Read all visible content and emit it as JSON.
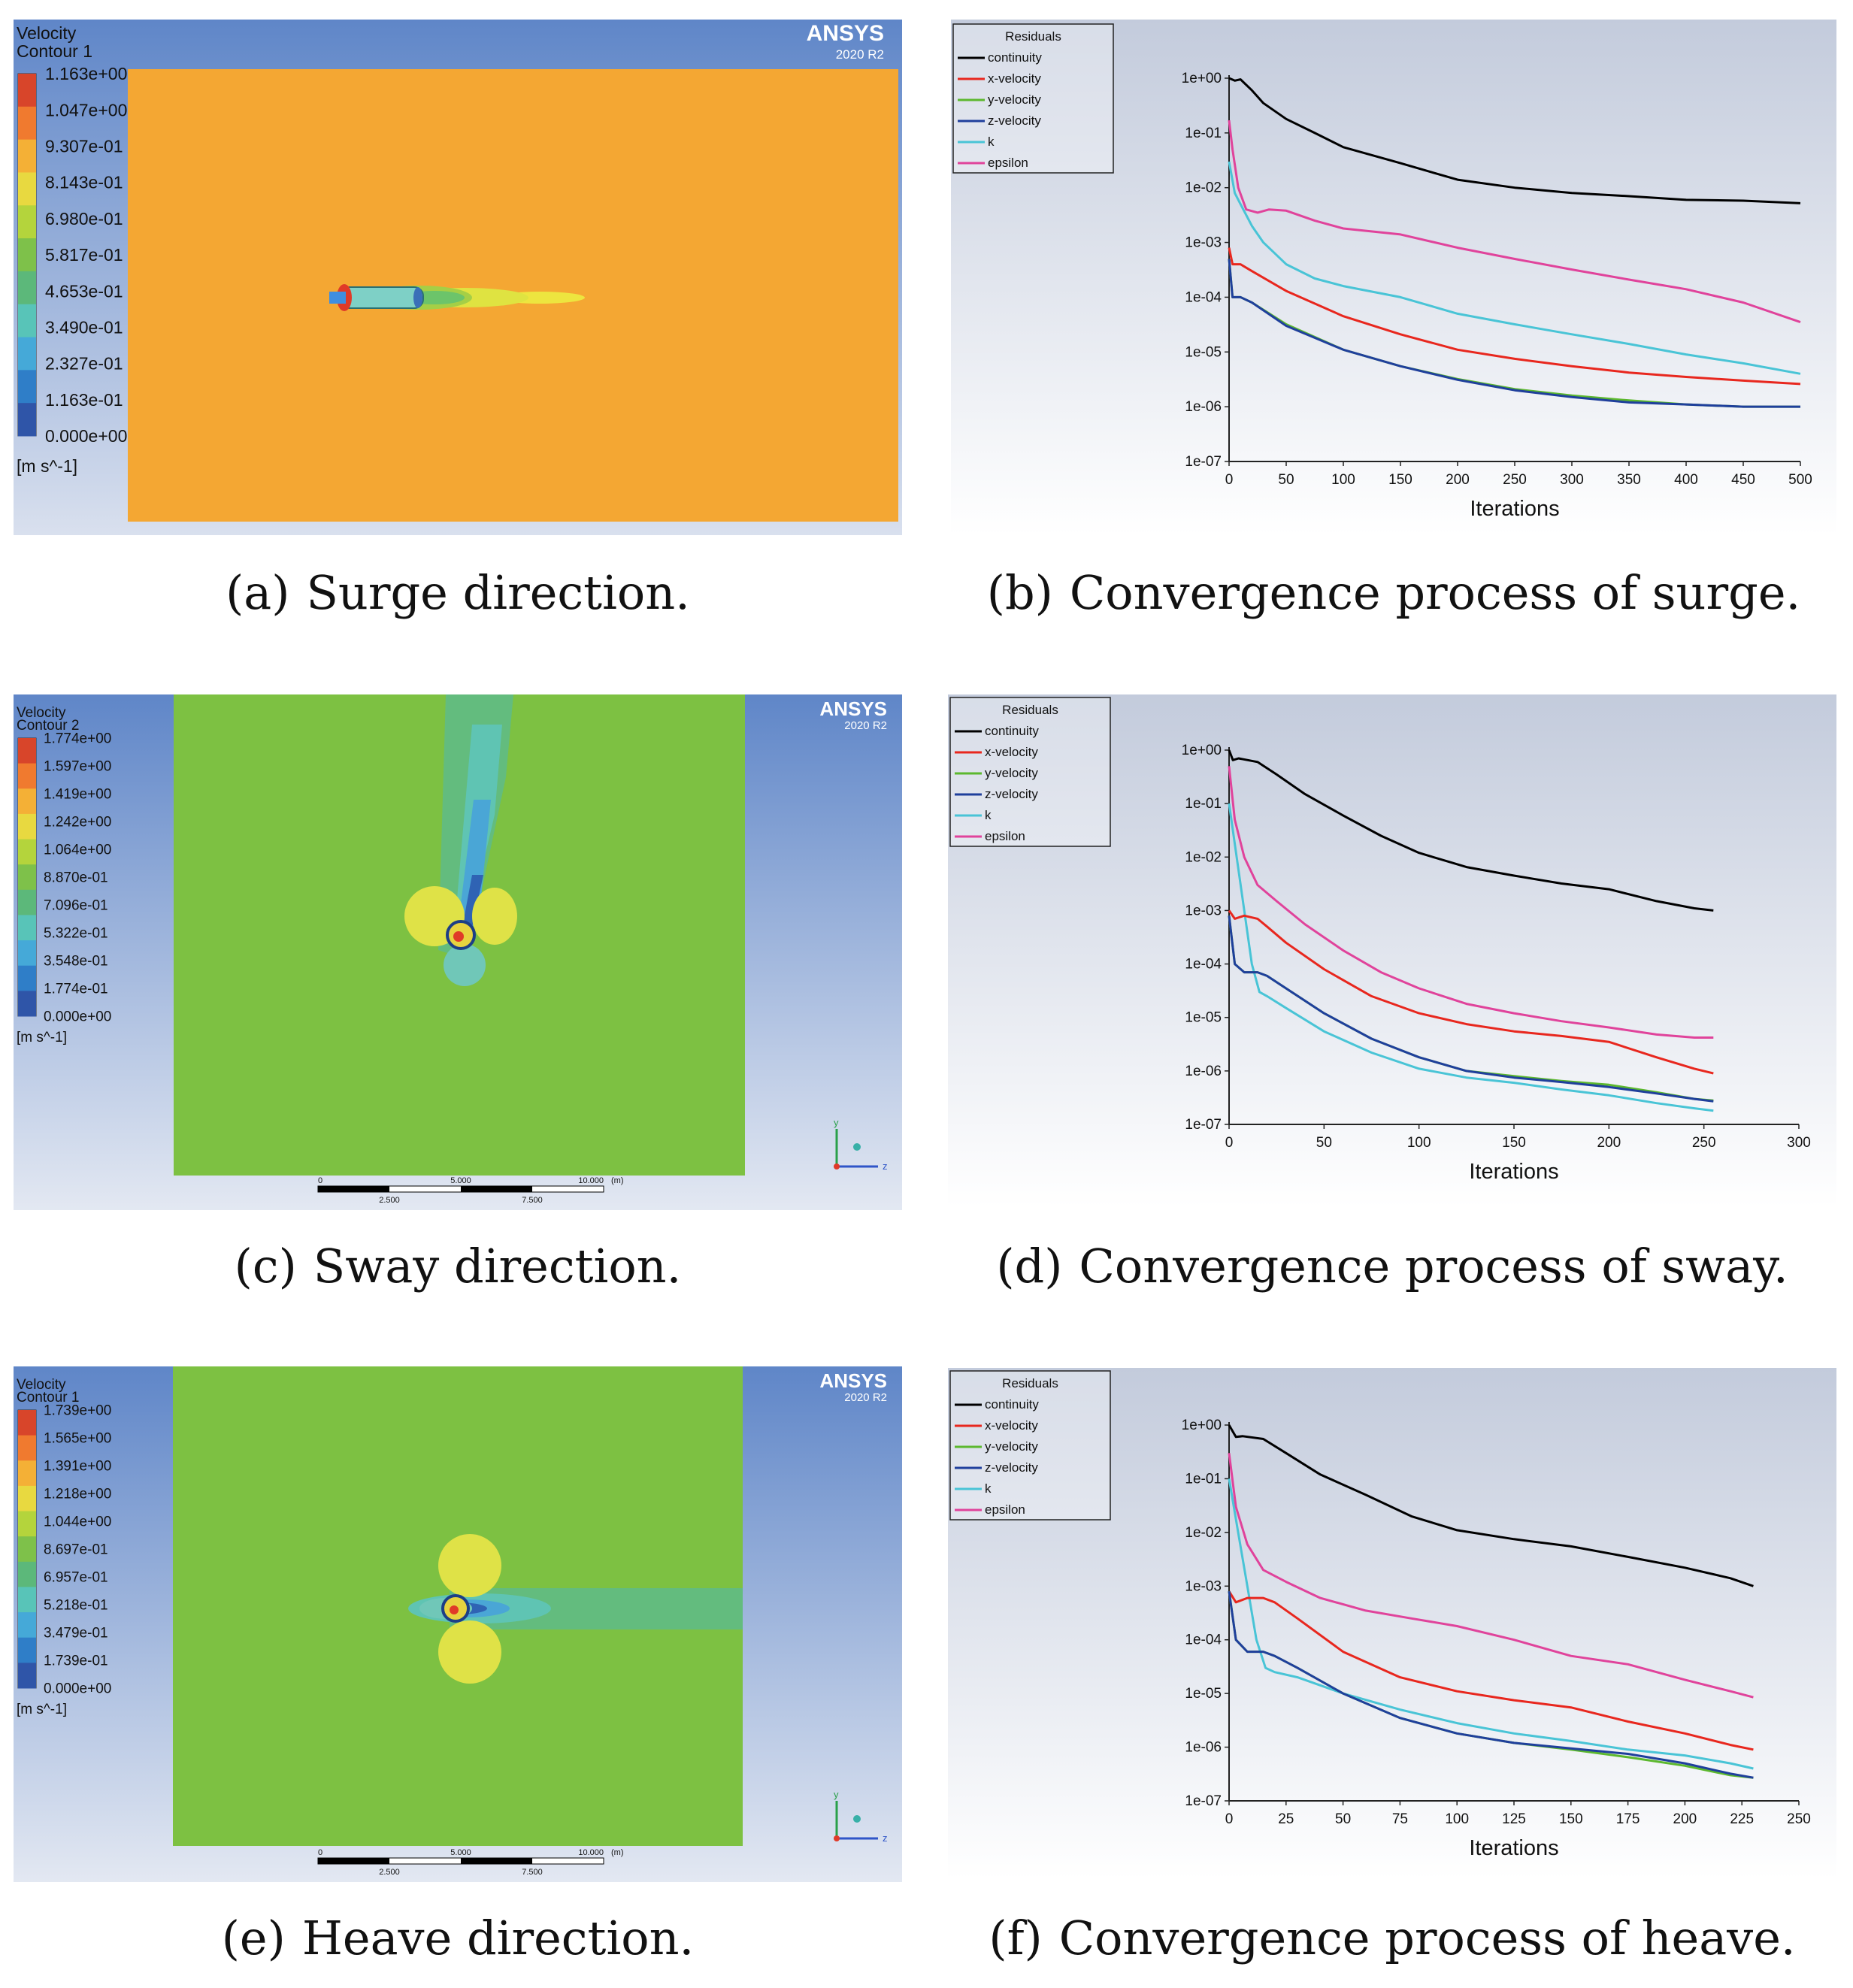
{
  "captions": {
    "a": {
      "label": "(a)",
      "text": "Surge direction."
    },
    "b": {
      "label": "(b)",
      "text": "Convergence process of surge."
    },
    "c": {
      "label": "(c)",
      "text": "Sway direction."
    },
    "d": {
      "label": "(d)",
      "text": "Convergence process of sway."
    },
    "e": {
      "label": "(e)",
      "text": "Heave direction."
    },
    "f": {
      "label": "(f)",
      "text": "Convergence process of heave."
    }
  },
  "contours": [
    {
      "id": "a",
      "title1": "Velocity",
      "title2": "Contour 1",
      "unit": "[m s^-1]",
      "brand": "ANSYS",
      "version": "2020 R2",
      "levels": [
        "1.163e+00",
        "1.047e+00",
        "9.307e-01",
        "8.143e-01",
        "6.980e-01",
        "5.817e-01",
        "4.653e-01",
        "3.490e-01",
        "2.327e-01",
        "1.163e-01",
        "0.000e+00"
      ]
    },
    {
      "id": "c",
      "title1": "Velocity",
      "title2": "Contour 2",
      "unit": "[m s^-1]",
      "brand": "ANSYS",
      "version": "2020 R2",
      "levels": [
        "1.774e+00",
        "1.597e+00",
        "1.419e+00",
        "1.242e+00",
        "1.064e+00",
        "8.870e-01",
        "7.096e-01",
        "5.322e-01",
        "3.548e-01",
        "1.774e-01",
        "0.000e+00"
      ],
      "scale": {
        "ticks_top": [
          "0",
          "5.000",
          "10.000"
        ],
        "unit": "(m)",
        "ticks_bottom": [
          "2.500",
          "7.500"
        ]
      },
      "axes": {
        "y": "y",
        "z": "z"
      }
    },
    {
      "id": "e",
      "title1": "Velocity",
      "title2": "Contour 1",
      "unit": "[m s^-1]",
      "brand": "ANSYS",
      "version": "2020 R2",
      "levels": [
        "1.739e+00",
        "1.565e+00",
        "1.391e+00",
        "1.218e+00",
        "1.044e+00",
        "8.697e-01",
        "6.957e-01",
        "5.218e-01",
        "3.479e-01",
        "1.739e-01",
        "0.000e+00"
      ],
      "scale": {
        "ticks_top": [
          "0",
          "5.000",
          "10.000"
        ],
        "unit": "(m)",
        "ticks_bottom": [
          "2.500",
          "7.500"
        ]
      },
      "axes": {
        "y": "y",
        "z": "z"
      }
    }
  ],
  "colormap": [
    "#d8452a",
    "#f07a2f",
    "#f4b036",
    "#e8d940",
    "#b4d43c",
    "#7ec14a",
    "#5cb87a",
    "#58c4b8",
    "#45a9d8",
    "#2f7ec8",
    "#2f55a8"
  ],
  "colors": {
    "continuity": "#000000",
    "x-velocity": "#e8271e",
    "y-velocity": "#5cb82e",
    "z-velocity": "#1f3f9c",
    "k": "#49c4d6",
    "epsilon": "#e0439b"
  },
  "chart_data": [
    {
      "id": "b",
      "type": "line",
      "title": "",
      "legend_title": "Residuals",
      "xlabel": "Iterations",
      "ylabel": "",
      "xlim": [
        0,
        500
      ],
      "ylim": [
        1e-07,
        1
      ],
      "xticks": [
        0,
        50,
        100,
        150,
        200,
        250,
        300,
        350,
        400,
        450,
        500
      ],
      "yticks": [
        "1e+00",
        "1e-01",
        "1e-02",
        "1e-03",
        "1e-04",
        "1e-05",
        "1e-06",
        "1e-07"
      ],
      "series": [
        {
          "name": "continuity",
          "x": [
            0,
            5,
            10,
            20,
            30,
            50,
            75,
            100,
            150,
            200,
            250,
            300,
            350,
            400,
            450,
            500
          ],
          "y": [
            1,
            0.9,
            0.95,
            0.6,
            0.35,
            0.18,
            0.1,
            0.055,
            0.028,
            0.014,
            0.01,
            0.008,
            0.007,
            0.006,
            0.0058,
            0.0052
          ]
        },
        {
          "name": "x-velocity",
          "x": [
            0,
            3,
            10,
            20,
            50,
            100,
            150,
            200,
            250,
            300,
            350,
            400,
            450,
            500
          ],
          "y": [
            0.0008,
            0.0004,
            0.0004,
            0.0003,
            0.00013,
            4.5e-05,
            2.1e-05,
            1.1e-05,
            7.5e-06,
            5.5e-06,
            4.2e-06,
            3.5e-06,
            3e-06,
            2.6e-06
          ]
        },
        {
          "name": "y-velocity",
          "x": [
            0,
            3,
            10,
            20,
            50,
            100,
            150,
            200,
            250,
            300,
            350,
            400,
            450,
            500
          ],
          "y": [
            0.0005,
            0.0001,
            0.0001,
            8e-05,
            3.2e-05,
            1.1e-05,
            5.5e-06,
            3.2e-06,
            2.1e-06,
            1.6e-06,
            1.3e-06,
            1.1e-06,
            1e-06,
            1e-06
          ]
        },
        {
          "name": "z-velocity",
          "x": [
            0,
            3,
            10,
            20,
            50,
            100,
            150,
            200,
            250,
            300,
            350,
            400,
            450,
            500
          ],
          "y": [
            0.0005,
            0.0001,
            0.0001,
            8e-05,
            3e-05,
            1.1e-05,
            5.5e-06,
            3.1e-06,
            2e-06,
            1.5e-06,
            1.2e-06,
            1.1e-06,
            1e-06,
            1e-06
          ]
        },
        {
          "name": "k",
          "x": [
            0,
            5,
            10,
            20,
            30,
            50,
            75,
            100,
            150,
            200,
            250,
            300,
            350,
            400,
            450,
            500
          ],
          "y": [
            0.03,
            0.008,
            0.005,
            0.002,
            0.001,
            0.0004,
            0.00022,
            0.00016,
            0.0001,
            5e-05,
            3.2e-05,
            2.1e-05,
            1.4e-05,
            9e-06,
            6.2e-06,
            4e-06
          ]
        },
        {
          "name": "epsilon",
          "x": [
            0,
            3,
            8,
            15,
            25,
            35,
            50,
            75,
            100,
            150,
            200,
            250,
            300,
            350,
            400,
            450,
            500
          ],
          "y": [
            0.17,
            0.05,
            0.01,
            0.004,
            0.0035,
            0.004,
            0.0038,
            0.0025,
            0.0018,
            0.0014,
            0.0008,
            0.0005,
            0.00032,
            0.00021,
            0.00014,
            8e-05,
            3.5e-05
          ]
        }
      ]
    },
    {
      "id": "d",
      "type": "line",
      "title": "",
      "legend_title": "Residuals",
      "xlabel": "Iterations",
      "ylabel": "",
      "xlim": [
        0,
        300
      ],
      "ylim": [
        1e-07,
        1
      ],
      "xticks": [
        0,
        50,
        100,
        150,
        200,
        250,
        300
      ],
      "yticks": [
        "1e+00",
        "1e-01",
        "1e-02",
        "1e-03",
        "1e-04",
        "1e-05",
        "1e-06",
        "1e-07"
      ],
      "series": [
        {
          "name": "continuity",
          "x": [
            0,
            2,
            5,
            15,
            25,
            40,
            60,
            80,
            100,
            125,
            150,
            175,
            200,
            225,
            245,
            255
          ],
          "y": [
            1,
            0.65,
            0.7,
            0.6,
            0.35,
            0.15,
            0.06,
            0.025,
            0.012,
            0.0065,
            0.0045,
            0.0032,
            0.0025,
            0.0015,
            0.0011,
            0.001
          ]
        },
        {
          "name": "x-velocity",
          "x": [
            0,
            3,
            8,
            15,
            20,
            30,
            50,
            75,
            100,
            125,
            150,
            175,
            200,
            225,
            245,
            255
          ],
          "y": [
            0.001,
            0.0007,
            0.0008,
            0.0007,
            0.0005,
            0.00025,
            8e-05,
            2.5e-05,
            1.2e-05,
            7.5e-06,
            5.5e-06,
            4.5e-06,
            3.5e-06,
            1.8e-06,
            1.1e-06,
            9e-07
          ]
        },
        {
          "name": "y-velocity",
          "x": [
            0,
            3,
            8,
            15,
            20,
            30,
            50,
            75,
            100,
            125,
            150,
            175,
            200,
            225,
            245,
            255
          ],
          "y": [
            0.0008,
            0.0001,
            7e-05,
            7e-05,
            6e-05,
            3.5e-05,
            1.2e-05,
            4e-06,
            1.8e-06,
            1e-06,
            8e-07,
            6.5e-07,
            5.5e-07,
            4e-07,
            3e-07,
            2.8e-07
          ]
        },
        {
          "name": "z-velocity",
          "x": [
            0,
            3,
            8,
            15,
            20,
            30,
            50,
            75,
            100,
            125,
            150,
            175,
            200,
            225,
            245,
            255
          ],
          "y": [
            0.0008,
            0.0001,
            7e-05,
            7e-05,
            6e-05,
            3.5e-05,
            1.2e-05,
            4e-06,
            1.8e-06,
            1e-06,
            7.5e-07,
            6.2e-07,
            5e-07,
            3.8e-07,
            3e-07,
            2.7e-07
          ]
        },
        {
          "name": "k",
          "x": [
            0,
            4,
            8,
            12,
            16,
            20,
            30,
            50,
            75,
            100,
            125,
            150,
            175,
            200,
            225,
            245,
            255
          ],
          "y": [
            0.1,
            0.01,
            0.001,
            0.0001,
            3e-05,
            2.5e-05,
            1.5e-05,
            5.5e-06,
            2.2e-06,
            1.1e-06,
            7.5e-07,
            6e-07,
            4.5e-07,
            3.5e-07,
            2.5e-07,
            2e-07,
            1.8e-07
          ]
        },
        {
          "name": "epsilon",
          "x": [
            0,
            3,
            8,
            15,
            25,
            40,
            60,
            80,
            100,
            125,
            150,
            175,
            200,
            225,
            245,
            255
          ],
          "y": [
            0.5,
            0.05,
            0.01,
            0.003,
            0.0015,
            0.00055,
            0.00018,
            7e-05,
            3.5e-05,
            1.8e-05,
            1.2e-05,
            8.5e-06,
            6.5e-06,
            4.8e-06,
            4.2e-06,
            4.2e-06
          ]
        }
      ]
    },
    {
      "id": "f",
      "type": "line",
      "title": "",
      "legend_title": "Residuals",
      "xlabel": "Iterations",
      "ylabel": "",
      "xlim": [
        0,
        250
      ],
      "ylim": [
        1e-07,
        1
      ],
      "xticks": [
        0,
        25,
        50,
        75,
        100,
        125,
        150,
        175,
        200,
        225,
        250
      ],
      "yticks": [
        "1e+00",
        "1e-01",
        "1e-02",
        "1e-03",
        "1e-04",
        "1e-05",
        "1e-06",
        "1e-07"
      ],
      "series": [
        {
          "name": "continuity",
          "x": [
            0,
            3,
            6,
            15,
            25,
            40,
            60,
            80,
            100,
            125,
            150,
            175,
            200,
            220,
            230
          ],
          "y": [
            1,
            0.6,
            0.62,
            0.55,
            0.3,
            0.12,
            0.05,
            0.02,
            0.011,
            0.0075,
            0.0055,
            0.0035,
            0.0022,
            0.0014,
            0.001
          ]
        },
        {
          "name": "x-velocity",
          "x": [
            0,
            3,
            8,
            15,
            20,
            30,
            50,
            75,
            100,
            125,
            150,
            175,
            200,
            220,
            230
          ],
          "y": [
            0.0008,
            0.0005,
            0.0006,
            0.0006,
            0.0005,
            0.00025,
            6e-05,
            2e-05,
            1.1e-05,
            7.5e-06,
            5.5e-06,
            3e-06,
            1.8e-06,
            1.1e-06,
            9e-07
          ]
        },
        {
          "name": "y-velocity",
          "x": [
            0,
            3,
            8,
            15,
            20,
            30,
            50,
            75,
            100,
            125,
            150,
            175,
            200,
            220,
            230
          ],
          "y": [
            0.0008,
            0.0001,
            6e-05,
            6e-05,
            5e-05,
            3e-05,
            1e-05,
            3.5e-06,
            1.8e-06,
            1.2e-06,
            9e-07,
            6.5e-07,
            4.5e-07,
            3e-07,
            2.7e-07
          ]
        },
        {
          "name": "z-velocity",
          "x": [
            0,
            3,
            8,
            15,
            20,
            30,
            50,
            75,
            100,
            125,
            150,
            175,
            200,
            220,
            230
          ],
          "y": [
            0.0008,
            0.0001,
            6e-05,
            6e-05,
            5e-05,
            3e-05,
            1e-05,
            3.5e-06,
            1.8e-06,
            1.2e-06,
            9.5e-07,
            7.5e-07,
            5e-07,
            3.2e-07,
            2.7e-07
          ]
        },
        {
          "name": "k",
          "x": [
            0,
            4,
            8,
            12,
            16,
            20,
            30,
            50,
            75,
            100,
            125,
            150,
            175,
            200,
            220,
            230
          ],
          "y": [
            0.1,
            0.01,
            0.001,
            0.0001,
            3e-05,
            2.5e-05,
            2e-05,
            1e-05,
            5e-06,
            2.8e-06,
            1.8e-06,
            1.3e-06,
            9e-07,
            7e-07,
            5e-07,
            4e-07
          ]
        },
        {
          "name": "epsilon",
          "x": [
            0,
            3,
            8,
            15,
            25,
            40,
            60,
            80,
            100,
            125,
            150,
            175,
            200,
            220,
            230
          ],
          "y": [
            0.3,
            0.03,
            0.006,
            0.002,
            0.0012,
            0.0006,
            0.00035,
            0.00025,
            0.00018,
            0.0001,
            5e-05,
            3.5e-05,
            1.8e-05,
            1.1e-05,
            8.5e-06
          ]
        }
      ]
    }
  ]
}
